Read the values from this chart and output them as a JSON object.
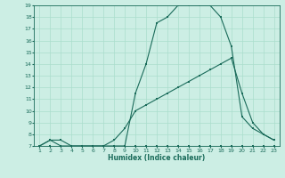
{
  "title": "",
  "xlabel": "Humidex (Indice chaleur)",
  "bg_color": "#cceee4",
  "grid_color": "#aaddcc",
  "line_color": "#1a6b5a",
  "xlim": [
    0.5,
    23.5
  ],
  "ylim": [
    7,
    19
  ],
  "xticks": [
    1,
    2,
    3,
    4,
    5,
    6,
    7,
    8,
    9,
    10,
    11,
    12,
    13,
    14,
    15,
    16,
    17,
    18,
    19,
    20,
    21,
    22,
    23
  ],
  "yticks": [
    7,
    8,
    9,
    10,
    11,
    12,
    13,
    14,
    15,
    16,
    17,
    18,
    19
  ],
  "line1_x": [
    1,
    2,
    3,
    4,
    5,
    6,
    7,
    8,
    9,
    10,
    11,
    12,
    13,
    14,
    15,
    16,
    17,
    18,
    19,
    20,
    21,
    22,
    23
  ],
  "line1_y": [
    7,
    7,
    7,
    7,
    7,
    7,
    7,
    7,
    7,
    7,
    7,
    7,
    7,
    7,
    7,
    7,
    7,
    7,
    7,
    7,
    7,
    7,
    7
  ],
  "line2_x": [
    1,
    2,
    3,
    4,
    5,
    6,
    7,
    8,
    9,
    10,
    11,
    12,
    13,
    14,
    15,
    16,
    17,
    18,
    19,
    20,
    21,
    22,
    23
  ],
  "line2_y": [
    7,
    7.5,
    7,
    7,
    7,
    7,
    7,
    7.5,
    8.5,
    10,
    10.5,
    11,
    11.5,
    12,
    12.5,
    13,
    13.5,
    14,
    14.5,
    11.5,
    9,
    8,
    7.5
  ],
  "line3_x": [
    1,
    2,
    3,
    4,
    5,
    6,
    7,
    8,
    9,
    10,
    11,
    12,
    13,
    14,
    15,
    16,
    17,
    18,
    19,
    20,
    21,
    22,
    23
  ],
  "line3_y": [
    7,
    7.5,
    7.5,
    7,
    7,
    7,
    7,
    7,
    7,
    11.5,
    14,
    17.5,
    18,
    19,
    19,
    19,
    19,
    18,
    15.5,
    9.5,
    8.5,
    8,
    7.5
  ],
  "marker_size": 1.8,
  "linewidth": 0.8,
  "tick_fontsize": 4.5,
  "xlabel_fontsize": 5.5
}
